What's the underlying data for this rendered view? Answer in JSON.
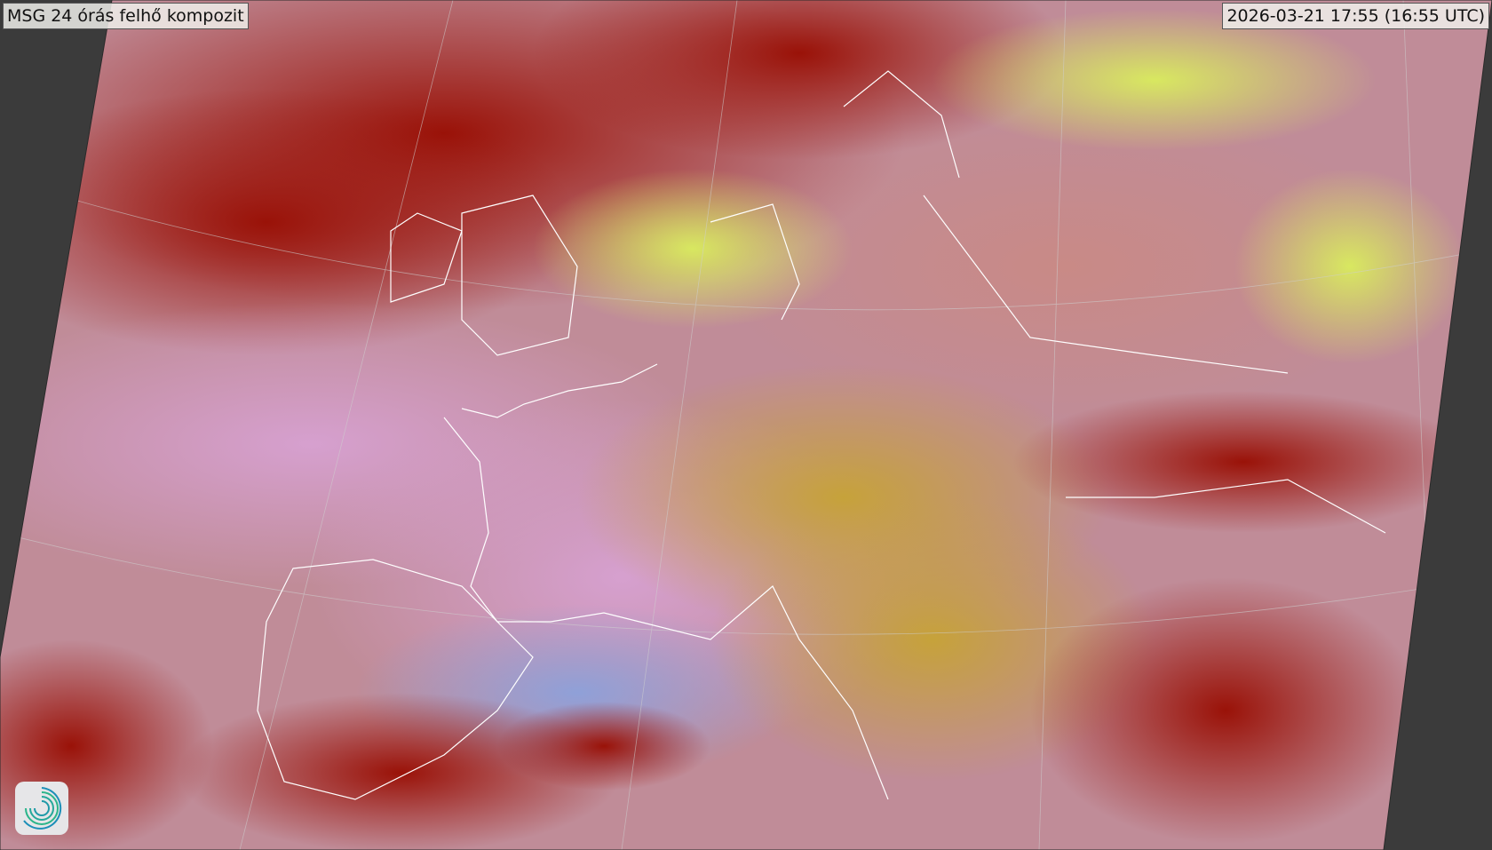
{
  "title": "MSG 24 órás felhő kompozit",
  "timestamp": "2026-03-21 17:55 (16:55 UTC)",
  "logo": {
    "icon": "spiral-logo-icon",
    "colors": [
      "#2bb58a",
      "#1c8fb8"
    ]
  },
  "colors": {
    "background": "#3b3b3b",
    "coastline": "#ffffff"
  }
}
